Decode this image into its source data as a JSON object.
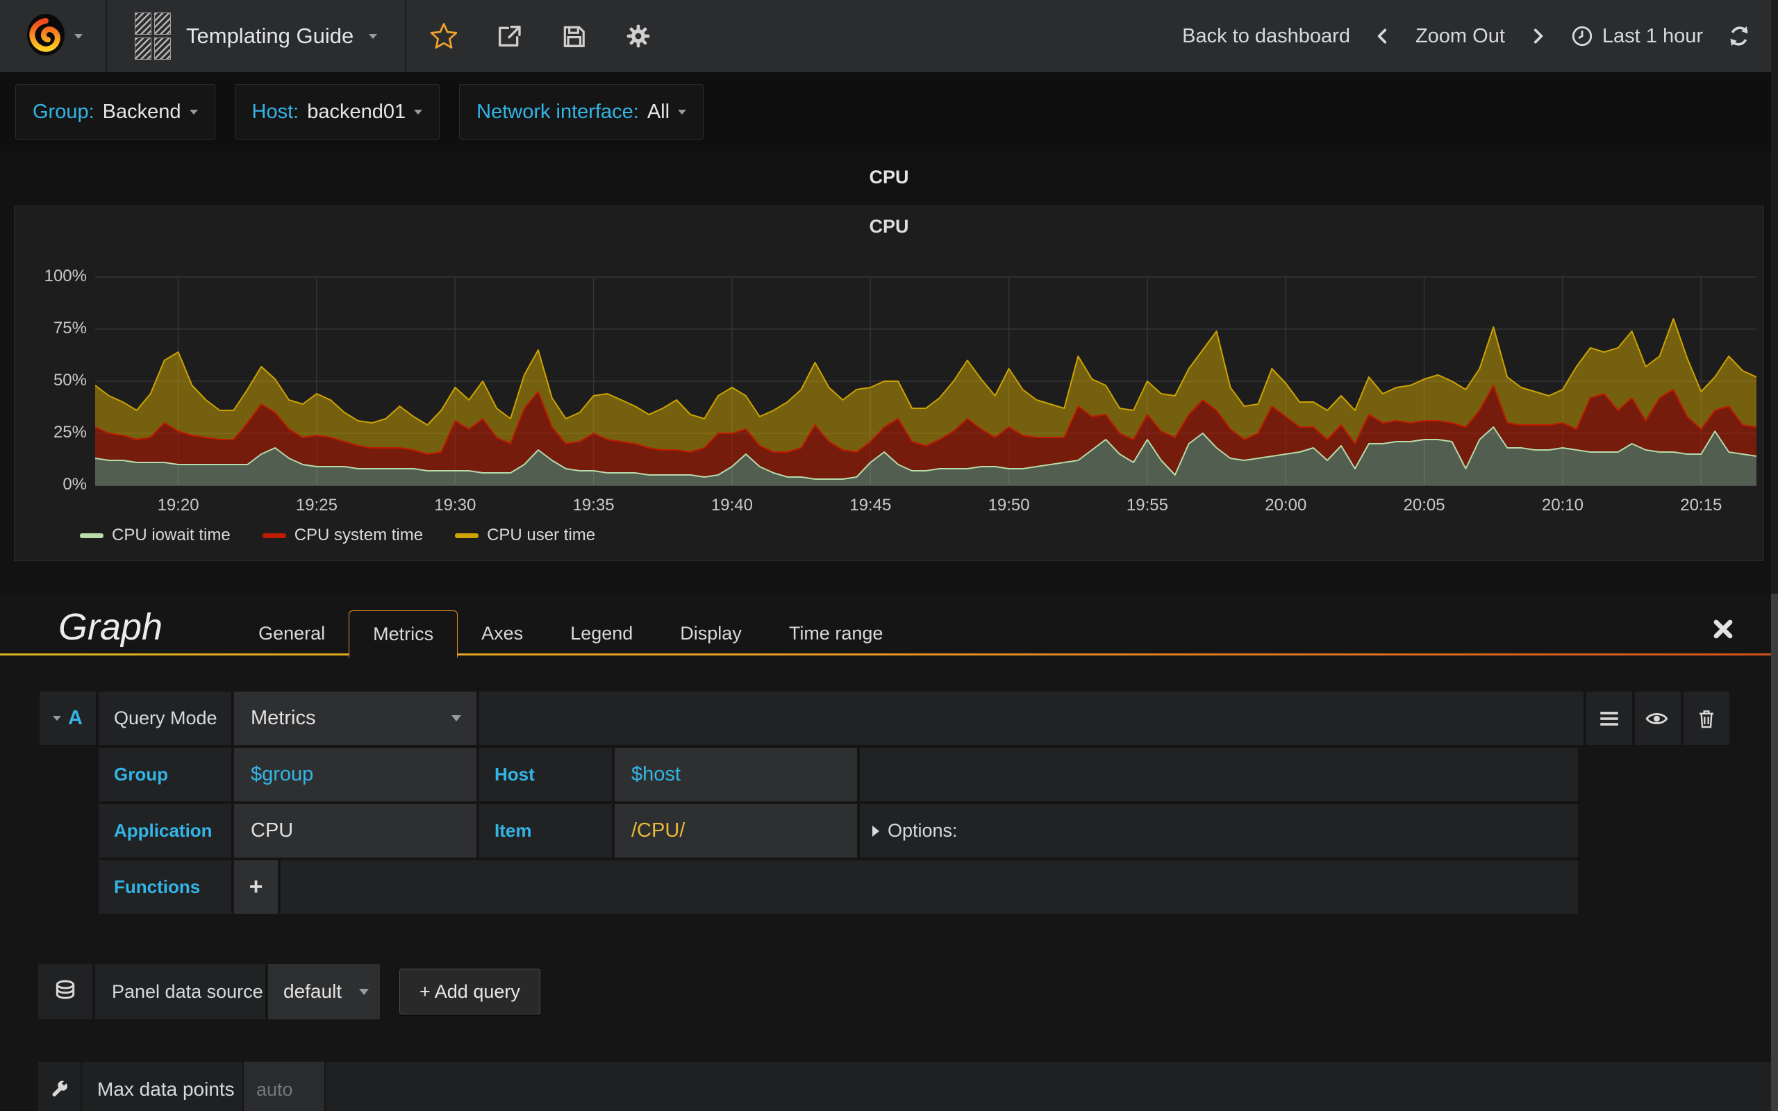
{
  "navbar": {
    "title": "Templating Guide",
    "icons": [
      "grafana-logo",
      "dashboard-grid-icon",
      "star-icon",
      "share-icon",
      "save-icon",
      "gear-icon",
      "clock-icon",
      "refresh-icon"
    ],
    "back_label": "Back to dashboard",
    "zoom_out_label": "Zoom Out",
    "time_range": "Last 1 hour"
  },
  "variables": [
    {
      "label": "Group:",
      "value": "Backend"
    },
    {
      "label": "Host:",
      "value": "backend01"
    },
    {
      "label": "Network interface:",
      "value": "All"
    }
  ],
  "panel": {
    "header_title": "CPU",
    "title": "CPU"
  },
  "chart_data": {
    "type": "area",
    "stacked": true,
    "title": "CPU",
    "ylabel": "percent",
    "ylim": [
      0,
      100
    ],
    "y_ticks": [
      "0%",
      "25%",
      "50%",
      "75%",
      "100%"
    ],
    "x_start": "19:17",
    "x_end": "20:17",
    "step_seconds": 30,
    "x_tick_labels": [
      "19:20",
      "19:25",
      "19:30",
      "19:35",
      "19:40",
      "19:45",
      "19:50",
      "19:55",
      "20:00",
      "20:05",
      "20:10",
      "20:15"
    ],
    "x_tick_first_index": 6,
    "x_tick_every": 10,
    "grid": true,
    "legend_position": "bottom",
    "series": [
      {
        "name": "CPU iowait time",
        "color": "#B7DBAB",
        "fill_opacity": 0.35,
        "values": [
          13,
          12,
          12,
          11,
          11,
          11,
          10,
          10,
          10,
          10,
          10,
          10,
          15,
          18,
          13,
          10,
          9,
          9,
          9,
          8,
          8,
          8,
          8,
          8,
          7,
          7,
          7,
          7,
          6,
          6,
          6,
          10,
          17,
          12,
          8,
          7,
          7,
          6,
          6,
          6,
          5,
          5,
          5,
          5,
          4,
          5,
          9,
          15,
          9,
          6,
          4,
          4,
          3,
          3,
          3,
          4,
          11,
          16,
          10,
          7,
          7,
          8,
          8,
          8,
          9,
          9,
          8,
          8,
          9,
          10,
          11,
          12,
          17,
          22,
          15,
          11,
          22,
          12,
          5,
          20,
          25,
          18,
          13,
          12,
          13,
          14,
          15,
          16,
          18,
          12,
          19,
          8,
          20,
          20,
          21,
          21,
          22,
          22,
          21,
          8,
          22,
          28,
          18,
          18,
          17,
          17,
          18,
          17,
          16,
          16,
          16,
          20,
          17,
          16,
          16,
          15,
          15,
          26,
          16,
          15,
          14
        ]
      },
      {
        "name": "CPU system time",
        "color": "#BF1B00",
        "fill_opacity": 0.55,
        "values": [
          15,
          13,
          12,
          11,
          12,
          19,
          16,
          14,
          13,
          12,
          12,
          20,
          24,
          17,
          14,
          13,
          15,
          14,
          12,
          11,
          10,
          10,
          10,
          9,
          8,
          9,
          24,
          20,
          26,
          17,
          14,
          27,
          28,
          16,
          12,
          14,
          18,
          16,
          15,
          14,
          13,
          12,
          12,
          11,
          14,
          20,
          16,
          12,
          10,
          10,
          12,
          14,
          26,
          18,
          14,
          12,
          10,
          12,
          22,
          14,
          12,
          14,
          18,
          24,
          18,
          14,
          20,
          16,
          14,
          13,
          12,
          26,
          16,
          12,
          10,
          11,
          12,
          14,
          18,
          14,
          16,
          18,
          14,
          10,
          12,
          24,
          18,
          12,
          10,
          10,
          10,
          12,
          14,
          10,
          10,
          9,
          9,
          9,
          9,
          20,
          14,
          20,
          12,
          11,
          12,
          12,
          12,
          10,
          26,
          28,
          20,
          22,
          14,
          26,
          30,
          18,
          12,
          10,
          22,
          14,
          14
        ]
      },
      {
        "name": "CPU user time",
        "color": "#CCA300",
        "fill_opacity": 0.5,
        "values": [
          20,
          18,
          16,
          14,
          21,
          30,
          38,
          24,
          18,
          14,
          14,
          16,
          18,
          16,
          14,
          16,
          20,
          18,
          14,
          12,
          12,
          14,
          20,
          16,
          14,
          20,
          16,
          14,
          18,
          14,
          12,
          16,
          20,
          14,
          12,
          14,
          18,
          22,
          20,
          18,
          16,
          20,
          24,
          18,
          14,
          18,
          22,
          16,
          14,
          20,
          24,
          28,
          30,
          26,
          24,
          30,
          26,
          22,
          18,
          16,
          18,
          20,
          24,
          28,
          24,
          20,
          28,
          22,
          18,
          16,
          14,
          24,
          18,
          14,
          12,
          14,
          16,
          18,
          20,
          22,
          24,
          38,
          20,
          16,
          14,
          18,
          16,
          12,
          12,
          14,
          14,
          16,
          18,
          14,
          16,
          18,
          20,
          22,
          20,
          18,
          20,
          28,
          22,
          18,
          16,
          14,
          16,
          30,
          24,
          20,
          30,
          32,
          26,
          20,
          34,
          28,
          18,
          16,
          24,
          26,
          24
        ]
      }
    ]
  },
  "editor": {
    "heading": "Graph",
    "tabs": [
      "General",
      "Metrics",
      "Axes",
      "Legend",
      "Display",
      "Time range"
    ],
    "active_tab": "Metrics",
    "query": {
      "ref": "A",
      "mode_label": "Query Mode",
      "mode_value": "Metrics",
      "fields": [
        {
          "label": "Group",
          "value": "$group"
        },
        {
          "label": "Host",
          "value": "$host"
        },
        {
          "label": "Application",
          "value": "CPU"
        },
        {
          "label": "Item",
          "value": "/CPU/"
        }
      ],
      "options_label": "Options:",
      "functions_label": "Functions",
      "add_function_label": "+",
      "row_icons": [
        "menu-icon",
        "eye-icon",
        "trash-icon"
      ]
    },
    "datasource": {
      "label": "Panel data source",
      "value": "default",
      "add_query_label": "+ Add query"
    },
    "max_data_points": {
      "label": "Max data points",
      "placeholder": "auto"
    }
  },
  "colors": {
    "accent_blue": "#33b5e5",
    "regex_gold": "#eab839",
    "tab_active_border": "#e78b28",
    "star_orange": "#f2a12e"
  }
}
